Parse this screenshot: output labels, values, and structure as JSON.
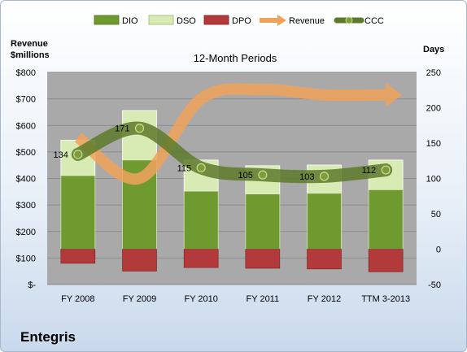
{
  "company": "Entegris",
  "chart_data": {
    "type": "bar",
    "title": "12-Month Periods",
    "categories": [
      "FY 2008",
      "FY 2009",
      "FY 2010",
      "FY 2011",
      "FY 2012",
      "TTM 3-2013"
    ],
    "left_axis": {
      "label_line1": "Revenue",
      "label_line2": "$millions",
      "min": 0,
      "max": 800,
      "step": 100,
      "ticks": [
        "$-",
        "$100",
        "$200",
        "$300",
        "$400",
        "$500",
        "$600",
        "$700",
        "$800"
      ]
    },
    "right_axis": {
      "label": "Days",
      "min": -50,
      "max": 250,
      "step": 50,
      "ticks": [
        "-50",
        "0",
        "50",
        "100",
        "150",
        "200",
        "250"
      ]
    },
    "series": [
      {
        "name": "DIO",
        "type": "stacked-bar",
        "axis": "right",
        "color": "#6f9a2f",
        "values": [
          104,
          126,
          82,
          78,
          79,
          84
        ]
      },
      {
        "name": "DSO",
        "type": "stacked-bar",
        "axis": "right",
        "color": "#d9ebb5",
        "values": [
          50,
          70,
          44,
          40,
          40,
          42
        ]
      },
      {
        "name": "DPO",
        "type": "stacked-bar-negative",
        "axis": "right",
        "color": "#b23a3a",
        "values": [
          -20,
          -31,
          -26,
          -27,
          -28,
          -32
        ]
      },
      {
        "name": "Revenue",
        "type": "line",
        "axis": "left",
        "color": "#f0a25a",
        "values": [
          555,
          400,
          700,
          735,
          715,
          715
        ]
      },
      {
        "name": "CCC",
        "type": "line",
        "axis": "right",
        "color": "#5d7a2a",
        "values": [
          134,
          171,
          115,
          105,
          103,
          112
        ]
      }
    ],
    "data_labels": [
      "134",
      "171",
      "115",
      "105",
      "103",
      "112"
    ],
    "legend": "top",
    "grid": true
  }
}
